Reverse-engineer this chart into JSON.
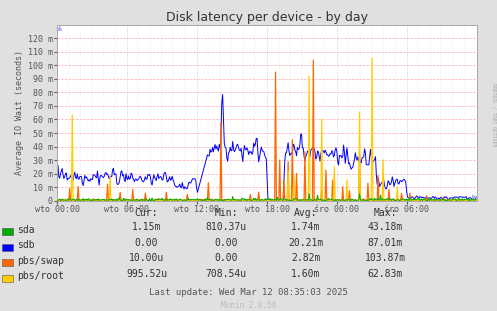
{
  "title": "Disk latency per device - by day",
  "ylabel": "Average IO Wait (seconds)",
  "bg_color": "#e0e0e0",
  "plot_bg_color": "#ffffff",
  "grid_h_color": "#ffaaaa",
  "grid_v_color": "#bbbbbb",
  "border_color": "#aaaaaa",
  "watermark": "Munin 2.0.56",
  "rrdtool_label": "RRDTOOL / TOBI OETIKER",
  "x_tick_labels": [
    "wto 00:00",
    "wto 06:00",
    "wto 12:00",
    "wto 18:00",
    "śro 00:00",
    "śro 06:00"
  ],
  "y_ticks": [
    0,
    10,
    20,
    30,
    40,
    50,
    60,
    70,
    80,
    90,
    100,
    110,
    120
  ],
  "y_tick_labels": [
    "0",
    "10 m",
    "20 m",
    "30 m",
    "40 m",
    "50 m",
    "60 m",
    "70 m",
    "80 m",
    "90 m",
    "100 m",
    "110 m",
    "120 m"
  ],
  "ylim": [
    0,
    130
  ],
  "legend": [
    {
      "label": "sda",
      "color": "#00aa00"
    },
    {
      "label": "sdb",
      "color": "#0000ff"
    },
    {
      "label": "pbs/swap",
      "color": "#ff6600"
    },
    {
      "label": "pbs/root",
      "color": "#ffcc00"
    }
  ],
  "stats_headers": [
    "Cur:",
    "Min:",
    "Avg:",
    "Max:"
  ],
  "stats_rows": [
    [
      "sda",
      "1.15m",
      "810.37u",
      "1.74m",
      "43.18m"
    ],
    [
      "sdb",
      "0.00",
      "0.00",
      "20.21m",
      "87.01m"
    ],
    [
      "pbs/swap",
      "10.00u",
      "0.00",
      "2.82m",
      "103.87m"
    ],
    [
      "pbs/root",
      "995.52u",
      "708.54u",
      "1.60m",
      "62.83m"
    ]
  ],
  "last_update": "Last update: Wed Mar 12 08:35:03 2025",
  "watermark_text": "Munin 2.0.56"
}
